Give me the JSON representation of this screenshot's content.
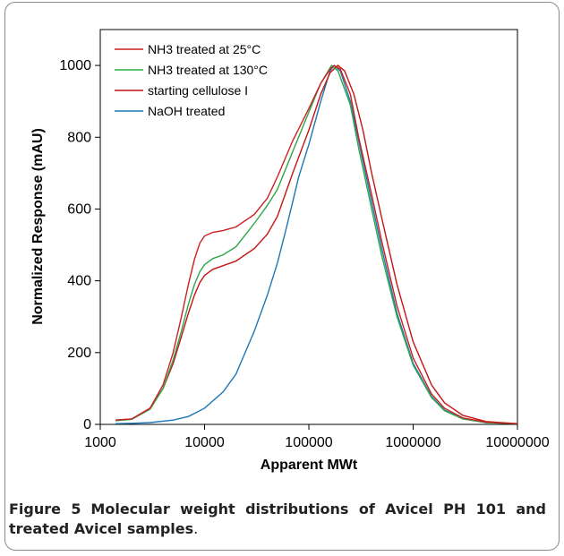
{
  "caption": {
    "label": "Figure 5",
    "text": "Molecular weight distributions of Avicel PH 101 and treated Avicel samples",
    "end": "."
  },
  "chart_data": {
    "type": "line",
    "xlabel": "Apparent MWt",
    "ylabel": "Normalized Response (mAU)",
    "x_scale": "log",
    "xlim": [
      1000,
      10000000
    ],
    "ylim": [
      0,
      1100
    ],
    "x_ticks": [
      1000,
      10000,
      100000,
      1000000,
      10000000
    ],
    "x_tick_labels": [
      "1000",
      "10000",
      "100000",
      "1000000",
      "10000000"
    ],
    "y_ticks": [
      0,
      200,
      400,
      600,
      800,
      1000
    ],
    "y_tick_labels": [
      "0",
      "200",
      "400",
      "600",
      "800",
      "1000"
    ],
    "legend_position": "top-left",
    "grid": false,
    "series": [
      {
        "name": "NH3 treated at 25°C",
        "color": "#cc1f1f",
        "points": [
          [
            1400,
            12
          ],
          [
            2000,
            15
          ],
          [
            3000,
            45
          ],
          [
            4000,
            110
          ],
          [
            5000,
            200
          ],
          [
            6000,
            300
          ],
          [
            7000,
            390
          ],
          [
            8000,
            460
          ],
          [
            9000,
            505
          ],
          [
            10000,
            525
          ],
          [
            12000,
            535
          ],
          [
            15000,
            540
          ],
          [
            20000,
            550
          ],
          [
            30000,
            585
          ],
          [
            40000,
            630
          ],
          [
            50000,
            690
          ],
          [
            70000,
            790
          ],
          [
            100000,
            880
          ],
          [
            130000,
            950
          ],
          [
            160000,
            990
          ],
          [
            175000,
            1000
          ],
          [
            200000,
            990
          ],
          [
            250000,
            920
          ],
          [
            300000,
            800
          ],
          [
            400000,
            640
          ],
          [
            500000,
            510
          ],
          [
            700000,
            330
          ],
          [
            1000000,
            185
          ],
          [
            1500000,
            85
          ],
          [
            2000000,
            45
          ],
          [
            3000000,
            18
          ],
          [
            5000000,
            6
          ],
          [
            10000000,
            2
          ]
        ]
      },
      {
        "name": "NH3 treated at 130°C",
        "color": "#2ca84a",
        "points": [
          [
            1400,
            10
          ],
          [
            2000,
            14
          ],
          [
            3000,
            42
          ],
          [
            4000,
            100
          ],
          [
            5000,
            180
          ],
          [
            6000,
            260
          ],
          [
            7000,
            335
          ],
          [
            8000,
            390
          ],
          [
            9000,
            425
          ],
          [
            10000,
            445
          ],
          [
            12000,
            462
          ],
          [
            15000,
            472
          ],
          [
            20000,
            495
          ],
          [
            30000,
            560
          ],
          [
            40000,
            610
          ],
          [
            50000,
            655
          ],
          [
            70000,
            760
          ],
          [
            100000,
            870
          ],
          [
            130000,
            950
          ],
          [
            165000,
            1000
          ],
          [
            190000,
            985
          ],
          [
            250000,
            890
          ],
          [
            300000,
            770
          ],
          [
            400000,
            600
          ],
          [
            500000,
            470
          ],
          [
            700000,
            300
          ],
          [
            1000000,
            165
          ],
          [
            1500000,
            75
          ],
          [
            2000000,
            38
          ],
          [
            3000000,
            15
          ],
          [
            5000000,
            5
          ],
          [
            10000000,
            2
          ]
        ]
      },
      {
        "name": "starting cellulose I",
        "color": "#c41414",
        "points": [
          [
            1400,
            12
          ],
          [
            2000,
            15
          ],
          [
            3000,
            45
          ],
          [
            4000,
            100
          ],
          [
            5000,
            170
          ],
          [
            6000,
            245
          ],
          [
            7000,
            310
          ],
          [
            8000,
            360
          ],
          [
            9000,
            395
          ],
          [
            10000,
            415
          ],
          [
            12000,
            432
          ],
          [
            15000,
            442
          ],
          [
            20000,
            455
          ],
          [
            30000,
            490
          ],
          [
            40000,
            530
          ],
          [
            50000,
            580
          ],
          [
            70000,
            700
          ],
          [
            100000,
            820
          ],
          [
            130000,
            920
          ],
          [
            160000,
            980
          ],
          [
            190000,
            1000
          ],
          [
            220000,
            985
          ],
          [
            270000,
            920
          ],
          [
            330000,
            820
          ],
          [
            400000,
            700
          ],
          [
            500000,
            575
          ],
          [
            700000,
            390
          ],
          [
            1000000,
            230
          ],
          [
            1500000,
            110
          ],
          [
            2000000,
            60
          ],
          [
            3000000,
            25
          ],
          [
            5000000,
            8
          ],
          [
            10000000,
            2
          ]
        ]
      },
      {
        "name": "NaOH treated",
        "color": "#1f77b4",
        "points": [
          [
            1400,
            2
          ],
          [
            2000,
            3
          ],
          [
            3000,
            5
          ],
          [
            5000,
            12
          ],
          [
            7000,
            22
          ],
          [
            10000,
            45
          ],
          [
            15000,
            90
          ],
          [
            20000,
            140
          ],
          [
            30000,
            260
          ],
          [
            40000,
            360
          ],
          [
            50000,
            450
          ],
          [
            60000,
            540
          ],
          [
            70000,
            620
          ],
          [
            80000,
            690
          ],
          [
            100000,
            780
          ],
          [
            130000,
            900
          ],
          [
            160000,
            985
          ],
          [
            175000,
            1000
          ],
          [
            200000,
            985
          ],
          [
            250000,
            900
          ],
          [
            300000,
            790
          ],
          [
            400000,
            620
          ],
          [
            500000,
            490
          ],
          [
            700000,
            310
          ],
          [
            1000000,
            170
          ],
          [
            1500000,
            78
          ],
          [
            2000000,
            40
          ],
          [
            3000000,
            16
          ],
          [
            5000000,
            5
          ],
          [
            10000000,
            2
          ]
        ]
      }
    ]
  }
}
